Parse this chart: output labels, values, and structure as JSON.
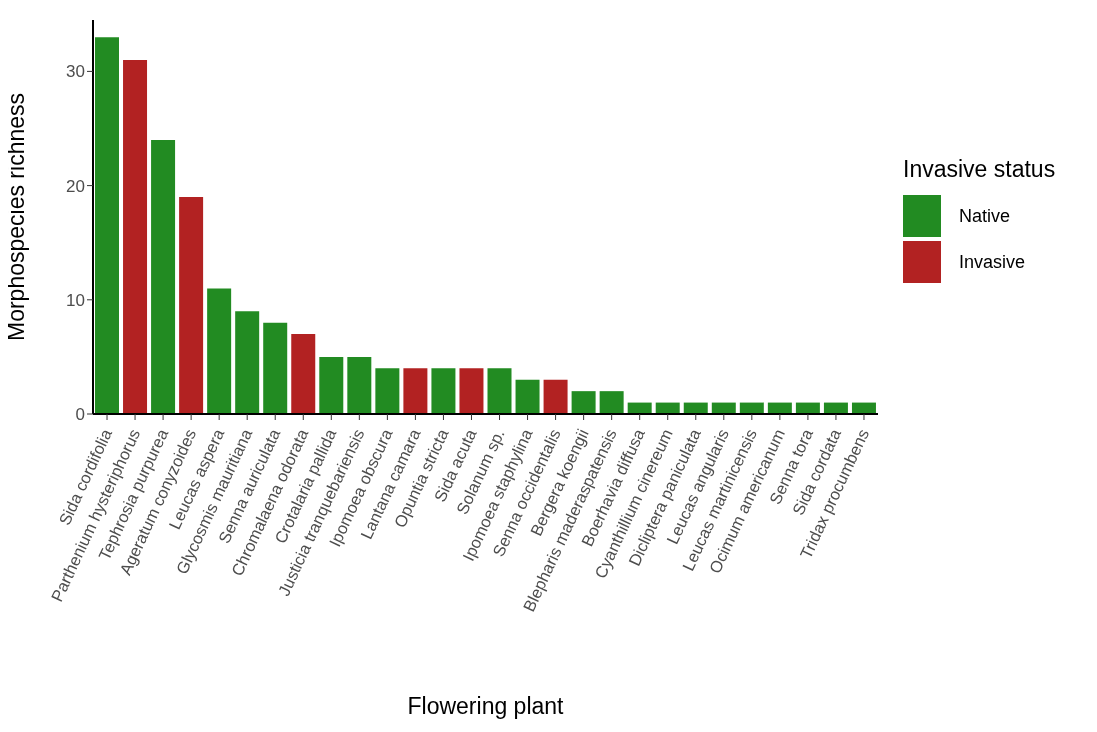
{
  "chart_data": {
    "type": "bar",
    "xlabel": "Flowering plant",
    "ylabel": "Morphospecies richness",
    "legend_title": "Invasive status",
    "categories": [
      "Sida cordifolia",
      "Parthenium hysteriphorus",
      "Tephrosia purpurea",
      "Ageratum conyzoides",
      "Leucas aspera",
      "Glycosmis mauritiana",
      "Senna auriculata",
      "Chromalaena odorata",
      "Crotalaria pallida",
      "Justicia tranquebariensis",
      "Ipomoea obscura",
      "Lantana camara",
      "Opuntia stricta",
      "Sida acuta",
      "Solanum sp.",
      "Ipomoea staphylina",
      "Senna occidentalis",
      "Bergera koengii",
      "Blepharis maderaspatensis",
      "Boerhavia diffusa",
      "Cyanthillium cinereum",
      "Dicliptera paniculata",
      "Leucas angularis",
      "Leucas martinicensis",
      "Ocimum americanum",
      "Senna tora",
      "Sida cordata",
      "Tridax procumbens"
    ],
    "series": [
      {
        "name": "Native",
        "color": "#228b22",
        "values": [
          33,
          null,
          24,
          null,
          11,
          9,
          8,
          null,
          5,
          5,
          4,
          null,
          4,
          null,
          4,
          3,
          null,
          2,
          2,
          1,
          1,
          1,
          1,
          1,
          1,
          1,
          1,
          1
        ]
      },
      {
        "name": "Invasive",
        "color": "#b22222",
        "values": [
          null,
          31,
          null,
          19,
          null,
          null,
          null,
          7,
          null,
          null,
          null,
          4,
          null,
          4,
          null,
          null,
          3,
          null,
          null,
          null,
          null,
          null,
          null,
          null,
          null,
          null,
          null,
          null
        ]
      }
    ],
    "stacked": true,
    "ylim": [
      0,
      34.5
    ],
    "yticks": [
      0,
      10,
      20,
      30
    ],
    "grid": false,
    "legend": "right"
  }
}
